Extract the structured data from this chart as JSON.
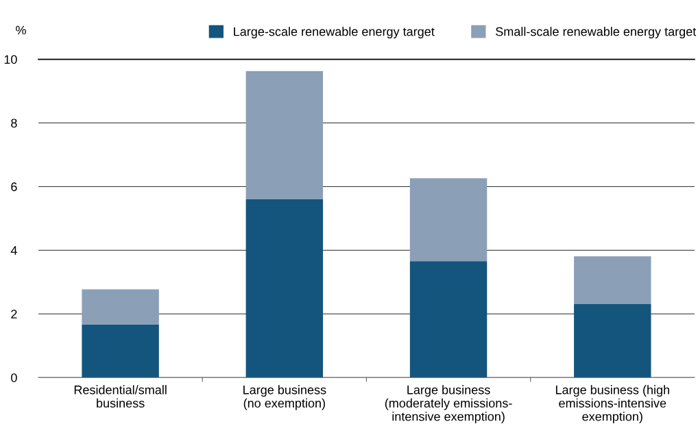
{
  "chart_data": {
    "type": "bar",
    "stacked": true,
    "ylabel": "%",
    "categories": [
      "Residential/small\nbusiness",
      "Large business\n(no exemption)",
      "Large business\n(moderately emissions-\nintensive exemption)",
      "Large business (high\nemissions-intensive\nexemption)"
    ],
    "series": [
      {
        "name": "Large-scale renewable energy target",
        "color": "#13557d",
        "values": [
          1.67,
          5.61,
          3.66,
          2.32
        ]
      },
      {
        "name": "Small-scale renewable energy target",
        "color": "#8b9fb7",
        "values": [
          1.1,
          4.02,
          2.6,
          1.49
        ]
      }
    ],
    "ylim": [
      0,
      10
    ],
    "yticks": [
      0,
      2,
      4,
      6,
      8,
      10
    ],
    "grid": "y",
    "legend": "top right"
  }
}
